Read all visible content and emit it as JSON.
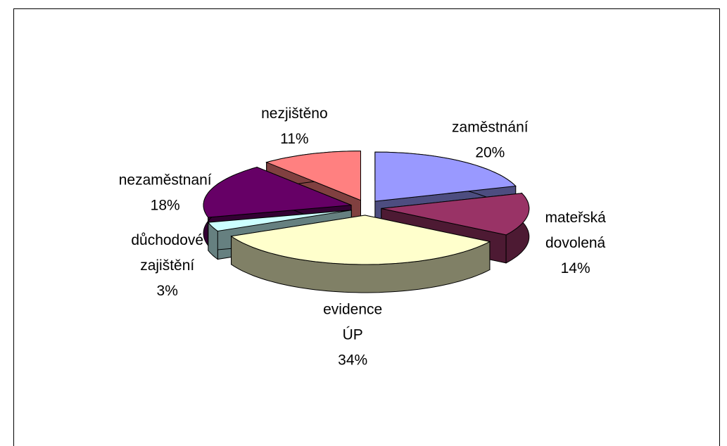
{
  "chart_data": {
    "type": "pie3d",
    "categories": [
      "zaměstnání",
      "mateřská dovolená",
      "evidence ÚP",
      "důchodové zajištění",
      "nezaměstnaní",
      "nezjištěno"
    ],
    "values": [
      20,
      14,
      34,
      3,
      18,
      11
    ],
    "value_labels": [
      "20%",
      "14%",
      "34%",
      "3%",
      "18%",
      "11%"
    ],
    "colors": [
      "#9999ff",
      "#993366",
      "#ffffcc",
      "#ccffff",
      "#660066",
      "#ff8080"
    ]
  }
}
